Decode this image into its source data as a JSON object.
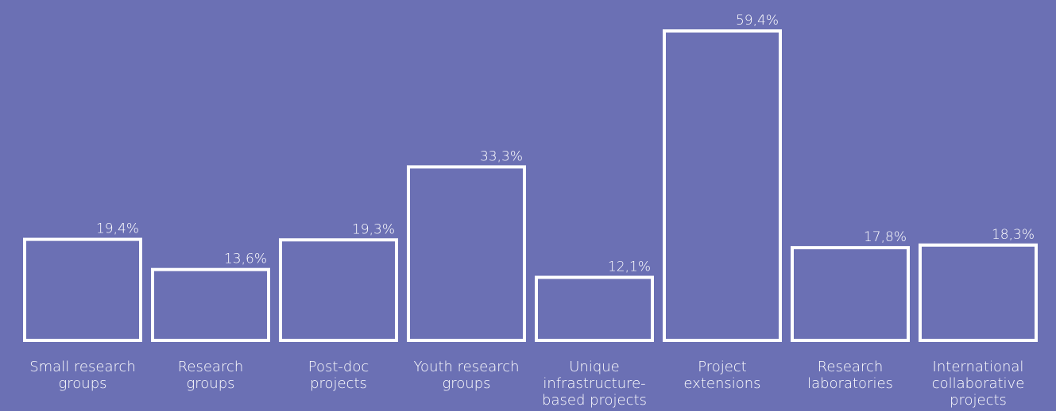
{
  "chart_data": {
    "type": "bar",
    "categories": [
      "Small research groups",
      "Research groups",
      "Post-doc projects",
      "Youth research groups",
      "Unique infrastructure-based projects",
      "Project extensions",
      "Research laboratories",
      "International collaborative projects"
    ],
    "category_lines": [
      [
        "Small research",
        "groups"
      ],
      [
        "Research",
        "groups"
      ],
      [
        "Post-doc",
        "projects"
      ],
      [
        "Youth research",
        "groups"
      ],
      [
        "Unique",
        "infrastructure-",
        "based projects"
      ],
      [
        "Project",
        "extensions"
      ],
      [
        "Research",
        "laboratories"
      ],
      [
        "International",
        "collaborative",
        "projects"
      ]
    ],
    "values": [
      19.4,
      13.6,
      19.3,
      33.3,
      12.1,
      59.4,
      17.8,
      18.3
    ],
    "value_labels": [
      "19,4%",
      "13,6%",
      "19,3%",
      "33,3%",
      "12,1%",
      "59,4%",
      "17,8%",
      "18,3%"
    ],
    "title": "",
    "xlabel": "",
    "ylabel": "",
    "ylim": [
      0,
      59.4
    ],
    "grid": false,
    "colors": {
      "background": "#6b70b4",
      "bar_stroke": "#ffffff",
      "text": "#ffffff"
    }
  }
}
